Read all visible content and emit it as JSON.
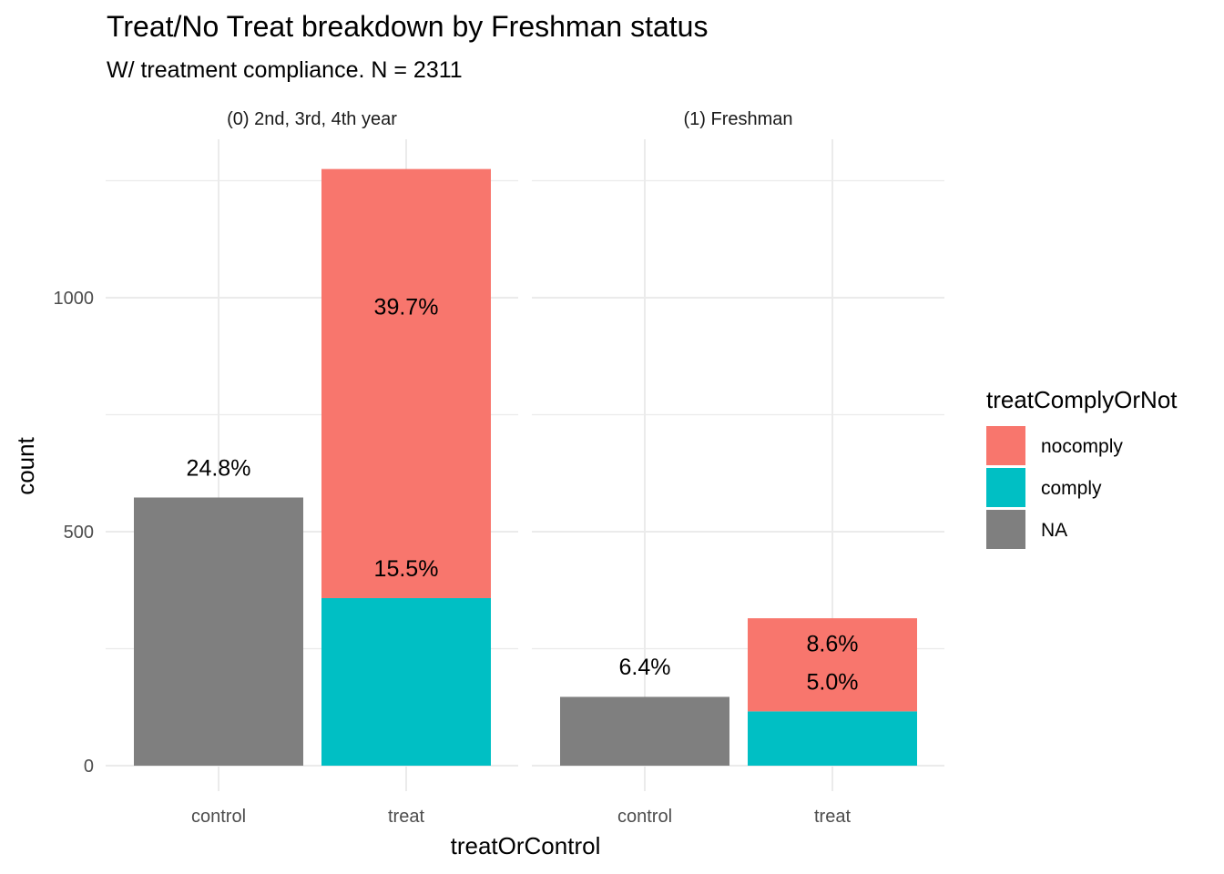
{
  "chart_data": {
    "type": "bar",
    "stacked": true,
    "title": "Treat/No Treat breakdown by Freshman status",
    "subtitle": "W/ treatment compliance. N = 2311",
    "xlabel": "treatOrControl",
    "ylabel": "count",
    "ylim": [
      0,
      1300
    ],
    "yticks": [
      0,
      500,
      1000
    ],
    "grid": true,
    "legend": {
      "title": "treatComplyOrNot",
      "position": "right",
      "entries": [
        {
          "key": "nocomply",
          "label": "nocomply",
          "color": "#F8766D"
        },
        {
          "key": "comply",
          "label": "comply",
          "color": "#00BFC4"
        },
        {
          "key": "NA",
          "label": "NA",
          "color": "#7F7F7F"
        }
      ]
    },
    "panels": [
      {
        "label": "(0) 2nd, 3rd, 4th year",
        "categories": [
          "control",
          "treat"
        ],
        "bars": [
          {
            "category": "control",
            "segments": [
              {
                "series": "NA",
                "value": 573
              }
            ],
            "labels": [
              {
                "text": "24.8%",
                "y": 635
              }
            ]
          },
          {
            "category": "treat",
            "segments": [
              {
                "series": "comply",
                "value": 358
              },
              {
                "series": "nocomply",
                "value": 917
              }
            ],
            "labels": [
              {
                "text": "15.5%",
                "y": 420
              },
              {
                "text": "39.7%",
                "y": 980
              }
            ]
          }
        ]
      },
      {
        "label": "(1) Freshman",
        "categories": [
          "control",
          "treat"
        ],
        "bars": [
          {
            "category": "control",
            "segments": [
              {
                "series": "NA",
                "value": 147
              }
            ],
            "labels": [
              {
                "text": "6.4%",
                "y": 210
              }
            ]
          },
          {
            "category": "treat",
            "segments": [
              {
                "series": "comply",
                "value": 116
              },
              {
                "series": "nocomply",
                "value": 199
              }
            ],
            "labels": [
              {
                "text": "5.0%",
                "y": 178
              },
              {
                "text": "8.6%",
                "y": 260
              }
            ]
          }
        ]
      }
    ]
  }
}
